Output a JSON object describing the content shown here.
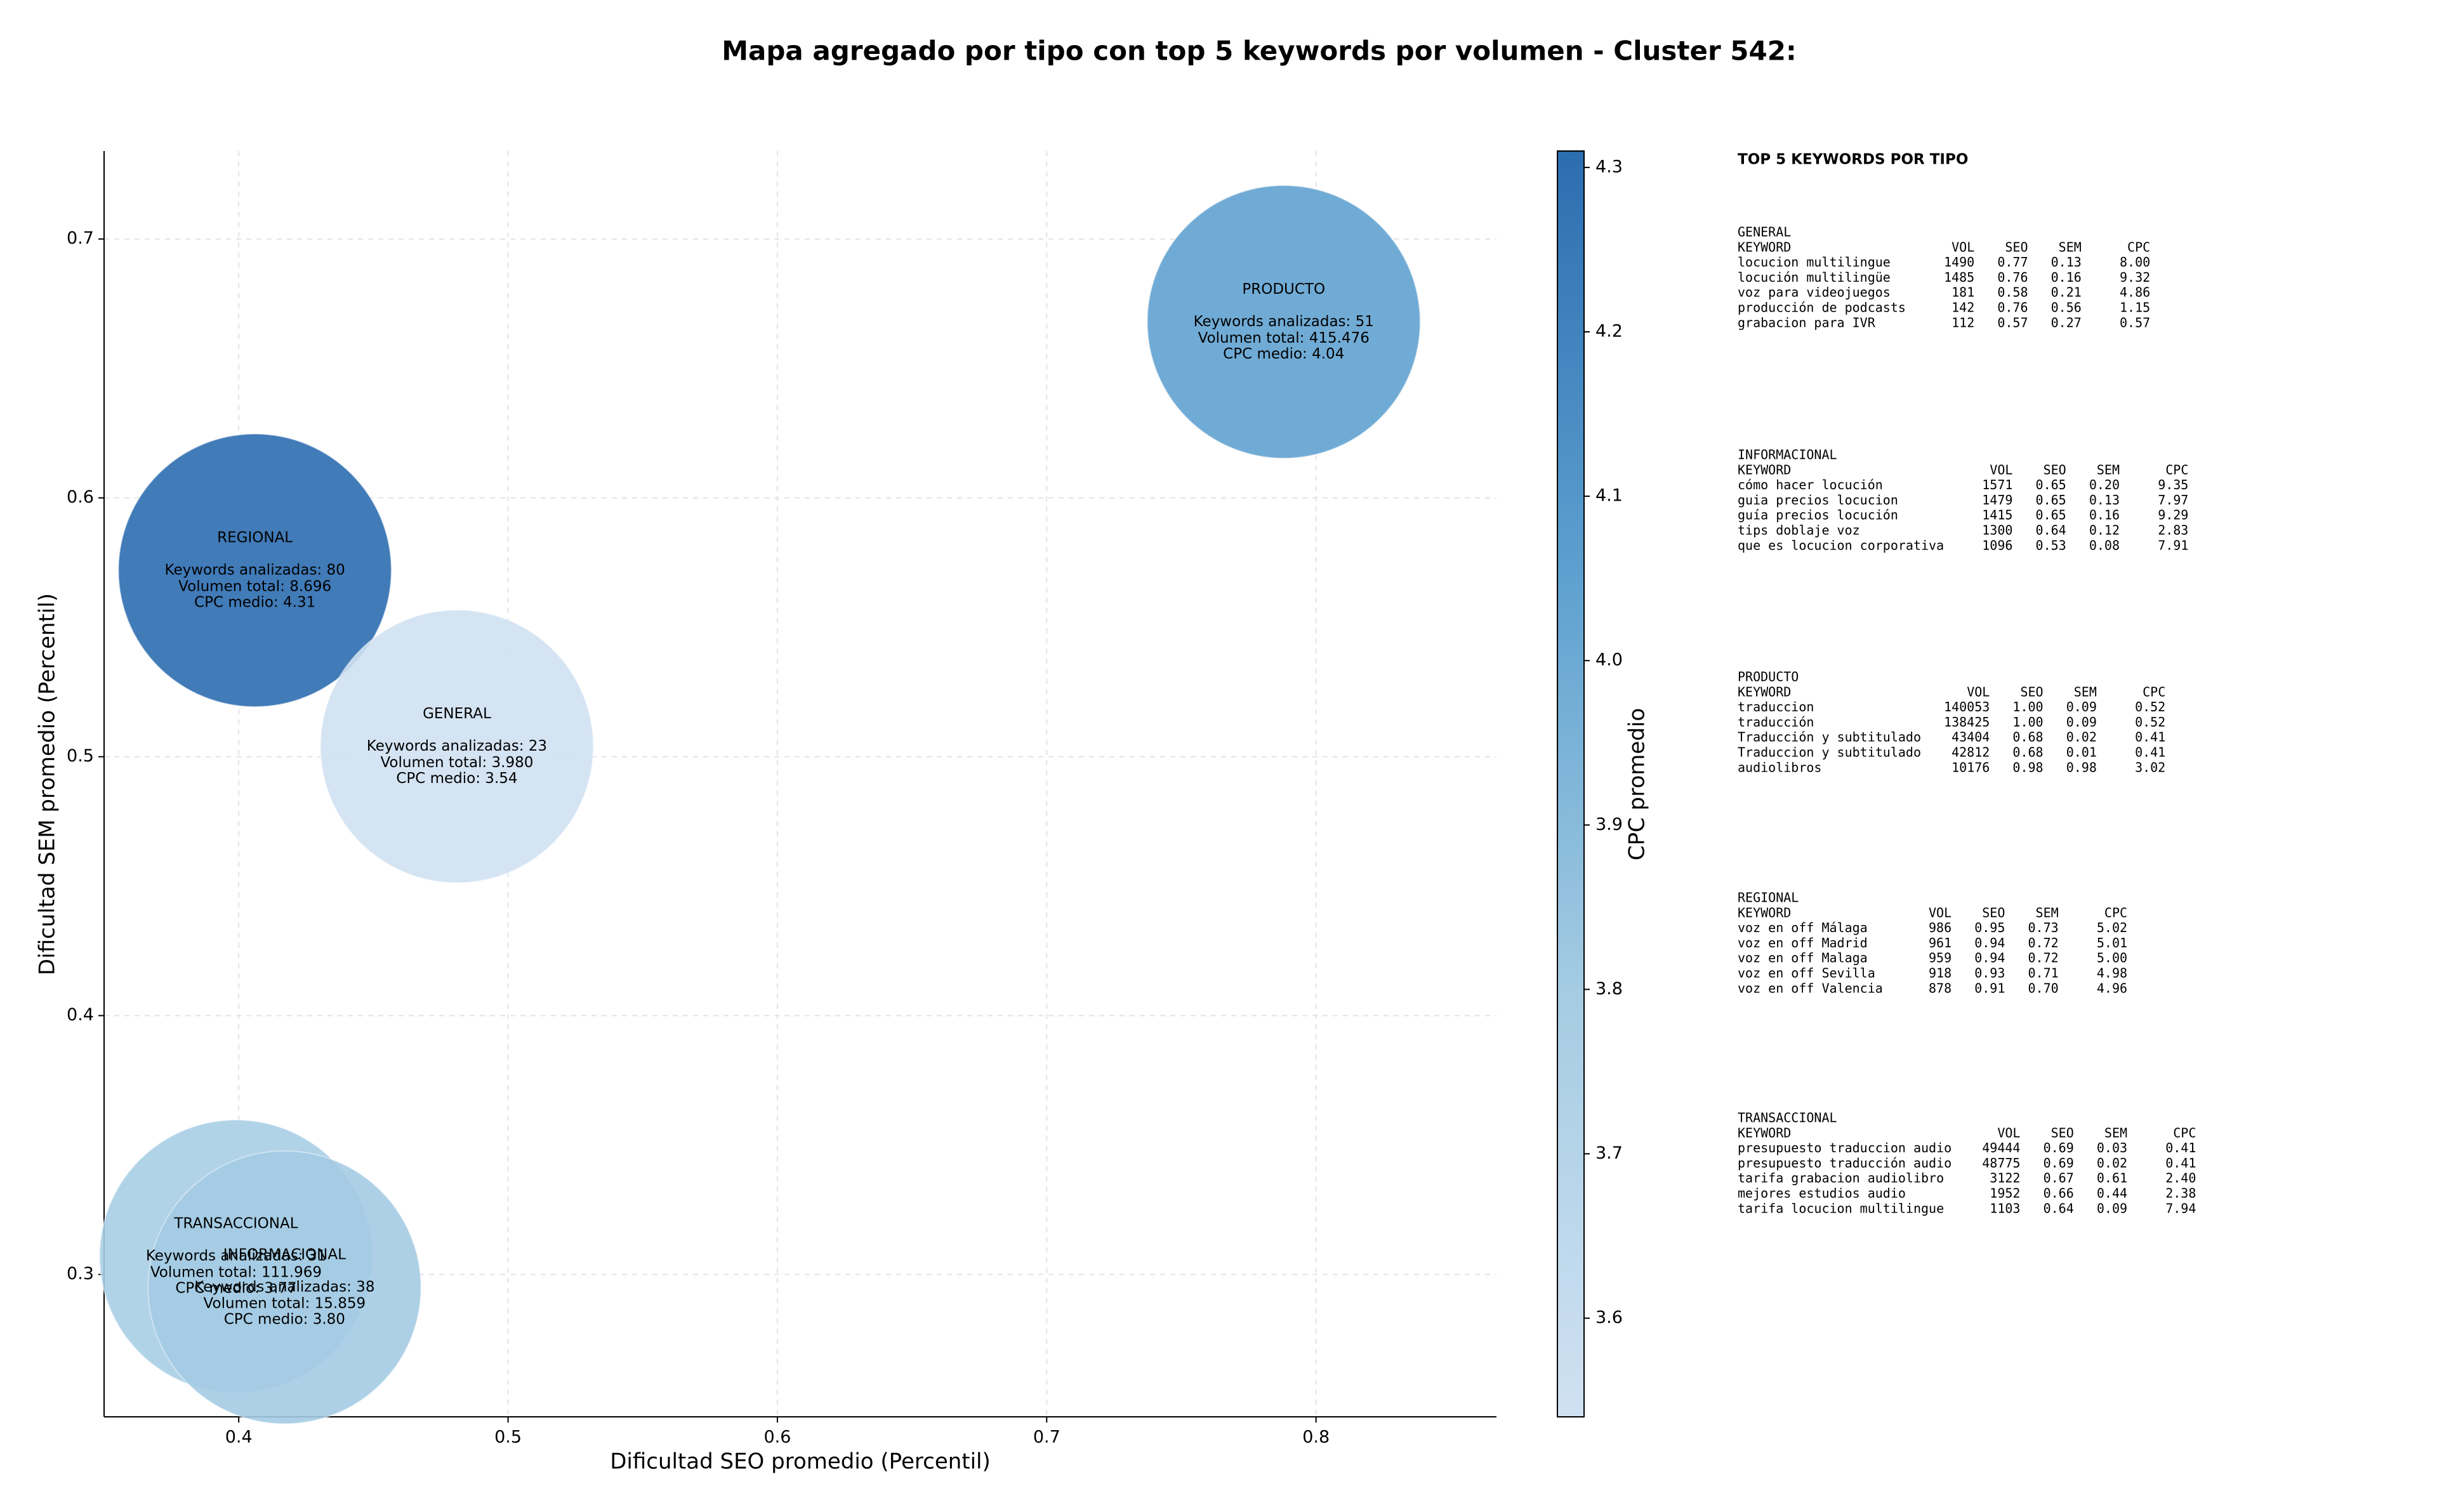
{
  "chart_data": {
    "type": "scatter",
    "title": "Mapa agregado por tipo con top 5 keywords por volumen - Cluster 542:",
    "xlabel": "Dificultad SEO promedio (Percentil)",
    "ylabel": "Dificultad SEM promedio (Percentil)",
    "xlim": [
      0.35,
      0.867
    ],
    "ylim": [
      0.245,
      0.734
    ],
    "xticks": [
      0.4,
      0.5,
      0.6,
      0.7,
      0.8
    ],
    "yticks": [
      0.3,
      0.4,
      0.5,
      0.6,
      0.7
    ],
    "grid": true,
    "labels": [
      "PRODUCTO",
      "REGIONAL",
      "GENERAL",
      "TRANSACCIONAL",
      "INFORMACIONAL"
    ],
    "x": [
      0.788,
      0.406,
      0.481,
      0.399,
      0.417
    ],
    "values": [
      0.668,
      0.572,
      0.504,
      0.307,
      0.295
    ],
    "cpc": [
      4.04,
      4.31,
      3.54,
      3.77,
      3.8
    ],
    "annotations": [
      [
        "Keywords analizadas: 51",
        "Volumen total: 415.476",
        "CPC medio: 4.04"
      ],
      [
        "Keywords analizadas: 80",
        "Volumen total: 8.696",
        "CPC medio: 4.31"
      ],
      [
        "Keywords analizadas: 23",
        "Volumen total: 3.980",
        "CPC medio: 3.54"
      ],
      [
        "Keywords analizadas: 31",
        "Volumen total: 111.969",
        "CPC medio: 3.77"
      ],
      [
        "Keywords analizadas: 38",
        "Volumen total: 15.859",
        "CPC medio: 3.80"
      ]
    ],
    "colorbar": {
      "label": "CPC promedio",
      "lim": [
        3.54,
        4.31
      ],
      "ticks": [
        3.6,
        3.7,
        3.8,
        3.9,
        {
          "value": 4.0,
          "label": "4.0"
        },
        4.1,
        4.2,
        4.3
      ],
      "colors": [
        "#d0e1f2",
        "#a5cce3",
        "#5da0cf",
        "#2c6db0"
      ]
    }
  },
  "side_panel": {
    "title": "TOP 5 KEYWORDS POR TIPO",
    "columns": [
      "KEYWORD",
      "VOL",
      "SEO",
      "SEM",
      "CPC"
    ],
    "groups": [
      {
        "name": "GENERAL",
        "rows": [
          [
            "locucion multilingue",
            "1490",
            "0.77",
            "0.13",
            "8.00"
          ],
          [
            "locución multilingüe",
            "1485",
            "0.76",
            "0.16",
            "9.32"
          ],
          [
            "voz para videojuegos",
            "181",
            "0.58",
            "0.21",
            "4.86"
          ],
          [
            "producción de podcasts",
            "142",
            "0.76",
            "0.56",
            "1.15"
          ],
          [
            "grabacion para IVR",
            "112",
            "0.57",
            "0.27",
            "0.57"
          ]
        ]
      },
      {
        "name": "INFORMACIONAL",
        "rows": [
          [
            "cómo hacer locución",
            "1571",
            "0.65",
            "0.20",
            "9.35"
          ],
          [
            "guia precios locucion",
            "1479",
            "0.65",
            "0.13",
            "7.97"
          ],
          [
            "guía precios locución",
            "1415",
            "0.65",
            "0.16",
            "9.29"
          ],
          [
            "tips doblaje voz",
            "1300",
            "0.64",
            "0.12",
            "2.83"
          ],
          [
            "que es locucion corporativa",
            "1096",
            "0.53",
            "0.08",
            "7.91"
          ]
        ]
      },
      {
        "name": "PRODUCTO",
        "rows": [
          [
            "traduccion",
            "140053",
            "1.00",
            "0.09",
            "0.52"
          ],
          [
            "traducción",
            "138425",
            "1.00",
            "0.09",
            "0.52"
          ],
          [
            "Traducción y subtitulado",
            "43404",
            "0.68",
            "0.02",
            "0.41"
          ],
          [
            "Traduccion y subtitulado",
            "42812",
            "0.68",
            "0.01",
            "0.41"
          ],
          [
            "audiolibros",
            "10176",
            "0.98",
            "0.98",
            "3.02"
          ]
        ]
      },
      {
        "name": "REGIONAL",
        "rows": [
          [
            "voz en off Málaga",
            "986",
            "0.95",
            "0.73",
            "5.02"
          ],
          [
            "voz en off Madrid",
            "961",
            "0.94",
            "0.72",
            "5.01"
          ],
          [
            "voz en off Malaga",
            "959",
            "0.94",
            "0.72",
            "5.00"
          ],
          [
            "voz en off Sevilla",
            "918",
            "0.93",
            "0.71",
            "4.98"
          ],
          [
            "voz en off Valencia",
            "878",
            "0.91",
            "0.70",
            "4.96"
          ]
        ]
      },
      {
        "name": "TRANSACCIONAL",
        "rows": [
          [
            "presupuesto traduccion audio",
            "49444",
            "0.69",
            "0.03",
            "0.41"
          ],
          [
            "presupuesto traducción audio",
            "48775",
            "0.69",
            "0.02",
            "0.41"
          ],
          [
            "tarifa grabacion audiolibro",
            "3122",
            "0.67",
            "0.61",
            "2.40"
          ],
          [
            "mejores estudios audio",
            "1952",
            "0.66",
            "0.44",
            "2.38"
          ],
          [
            "tarifa locucion multilingue",
            "1103",
            "0.64",
            "0.09",
            "7.94"
          ]
        ]
      }
    ]
  }
}
